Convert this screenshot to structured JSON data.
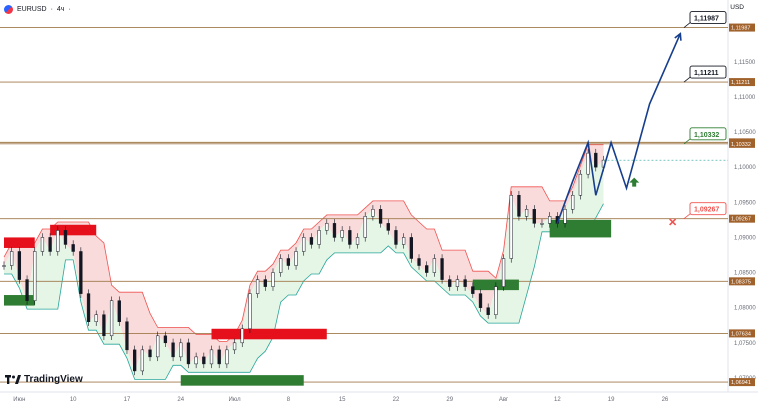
{
  "header": {
    "symbol": "EURUSD",
    "separator": "·",
    "interval": "4ч",
    "dot": "·",
    "currency": "USD"
  },
  "branding": {
    "logo_text": "TradingView"
  },
  "colors": {
    "level_line": "#a0794a",
    "level_tag": "#a0612b",
    "bull": "#26a69a",
    "bear": "#ef5350",
    "candle": "#131722",
    "resistance_fill": "#f8d7d7",
    "support_fill": "#e3f5e3",
    "projection": "#163e8c",
    "red_zone": "#e5101c",
    "green_zone": "#2e7d32"
  },
  "chart_data": {
    "type": "candlestick",
    "instrument": "EURUSD",
    "timeframe": "4ч",
    "ylim": [
      1.068,
      1.1218
    ],
    "y_ticks": [
      "1,11500",
      "1,11000",
      "1,10500",
      "1,10000",
      "1,09500",
      "1,09000",
      "1,08500",
      "1,08000",
      "1,07500",
      "1,07000"
    ],
    "y_tick_values": [
      1.115,
      1.11,
      1.105,
      1.1,
      1.095,
      1.09,
      1.085,
      1.08,
      1.075,
      1.07
    ],
    "x_ticks": [
      "Июн",
      "10",
      "17",
      "24",
      "Июл",
      "8",
      "15",
      "22",
      "29",
      "Авг",
      "12",
      "19",
      "26"
    ],
    "x_tick_values": [
      3,
      10,
      17,
      24,
      31,
      38,
      45,
      52,
      59,
      66,
      73,
      80,
      87
    ],
    "x_range": [
      1,
      90
    ],
    "levels": [
      {
        "label": "1,11987",
        "value": 1.11987
      },
      {
        "label": "1,11211",
        "value": 1.11211
      },
      {
        "label": "1,10353",
        "value": 1.10353
      },
      {
        "label": "1,10332",
        "value": 1.10332
      },
      {
        "label": "1,09267",
        "value": 1.09267
      },
      {
        "label": "1,08375",
        "value": 1.08375
      },
      {
        "label": "1,07634",
        "value": 1.07634
      },
      {
        "label": "1,06941",
        "value": 1.06941
      }
    ],
    "price_path": [
      [
        1,
        1.086
      ],
      [
        2,
        1.088
      ],
      [
        3,
        1.084
      ],
      [
        4,
        1.081
      ],
      [
        5,
        1.088
      ],
      [
        6,
        1.09
      ],
      [
        7,
        1.088
      ],
      [
        8,
        1.091
      ],
      [
        9,
        1.089
      ],
      [
        10,
        1.088
      ],
      [
        11,
        1.082
      ],
      [
        12,
        1.078
      ],
      [
        13,
        1.079
      ],
      [
        14,
        1.076
      ],
      [
        15,
        1.081
      ],
      [
        16,
        1.078
      ],
      [
        17,
        1.074
      ],
      [
        18,
        1.071
      ],
      [
        19,
        1.074
      ],
      [
        20,
        1.073
      ],
      [
        21,
        1.076
      ],
      [
        22,
        1.075
      ],
      [
        23,
        1.073
      ],
      [
        24,
        1.075
      ],
      [
        25,
        1.072
      ],
      [
        26,
        1.073
      ],
      [
        27,
        1.072
      ],
      [
        28,
        1.074
      ],
      [
        29,
        1.072
      ],
      [
        30,
        1.074
      ],
      [
        31,
        1.075
      ],
      [
        32,
        1.077
      ],
      [
        33,
        1.082
      ],
      [
        34,
        1.084
      ],
      [
        35,
        1.083
      ],
      [
        36,
        1.085
      ],
      [
        37,
        1.087
      ],
      [
        38,
        1.086
      ],
      [
        39,
        1.088
      ],
      [
        40,
        1.09
      ],
      [
        41,
        1.089
      ],
      [
        42,
        1.091
      ],
      [
        43,
        1.092
      ],
      [
        44,
        1.09
      ],
      [
        45,
        1.091
      ],
      [
        46,
        1.089
      ],
      [
        47,
        1.09
      ],
      [
        48,
        1.093
      ],
      [
        49,
        1.094
      ],
      [
        50,
        1.092
      ],
      [
        51,
        1.091
      ],
      [
        52,
        1.089
      ],
      [
        53,
        1.09
      ],
      [
        54,
        1.087
      ],
      [
        55,
        1.086
      ],
      [
        56,
        1.085
      ],
      [
        57,
        1.087
      ],
      [
        58,
        1.084
      ],
      [
        59,
        1.083
      ],
      [
        60,
        1.084
      ],
      [
        61,
        1.083
      ],
      [
        62,
        1.082
      ],
      [
        63,
        1.08
      ],
      [
        64,
        1.079
      ],
      [
        65,
        1.083
      ],
      [
        66,
        1.087
      ],
      [
        67,
        1.096
      ],
      [
        68,
        1.093
      ],
      [
        69,
        1.094
      ],
      [
        70,
        1.092
      ],
      [
        71,
        1.092
      ],
      [
        72,
        1.093
      ],
      [
        73,
        1.092
      ],
      [
        74,
        1.094
      ],
      [
        75,
        1.096
      ],
      [
        76,
        1.099
      ],
      [
        77,
        1.102
      ],
      [
        78,
        1.1
      ],
      [
        79,
        1.101
      ]
    ],
    "projection_path": [
      [
        73,
        1.092
      ],
      [
        75,
        1.098
      ],
      [
        77,
        1.1035
      ],
      [
        78,
        1.096
      ],
      [
        80,
        1.1035
      ],
      [
        82,
        1.097
      ],
      [
        85,
        1.109
      ],
      [
        89,
        1.119
      ]
    ],
    "zones": [
      {
        "color": "red",
        "x0": 1,
        "x1": 5,
        "y0": 1.09,
        "y1": 1.0885
      },
      {
        "color": "red",
        "x0": 7,
        "x1": 13,
        "y0": 1.0918,
        "y1": 1.0903
      },
      {
        "color": "red",
        "x0": 28,
        "x1": 43,
        "y0": 1.077,
        "y1": 1.0755
      },
      {
        "color": "green",
        "x0": 1,
        "x1": 5,
        "y0": 1.0818,
        "y1": 1.0803
      },
      {
        "color": "green",
        "x0": 24,
        "x1": 40,
        "y0": 1.0704,
        "y1": 1.0689
      },
      {
        "color": "green",
        "x0": 62,
        "x1": 68,
        "y0": 1.084,
        "y1": 1.0825
      },
      {
        "color": "green",
        "x0": 72,
        "x1": 80,
        "y0": 1.0925,
        "y1": 1.09
      }
    ],
    "callouts": [
      {
        "label": "1,11987",
        "value": 1.11987,
        "style": "dark"
      },
      {
        "label": "1,11211",
        "value": 1.11211,
        "style": "dark"
      },
      {
        "label": "1,10332",
        "value": 1.10332,
        "style": "green"
      },
      {
        "label": "1,09267",
        "value": 1.09267,
        "style": "red"
      }
    ],
    "markers": [
      {
        "type": "up-arrow",
        "x": 83,
        "value": 1.0978
      },
      {
        "type": "cross",
        "x": 88,
        "value": 1.0922
      }
    ]
  }
}
